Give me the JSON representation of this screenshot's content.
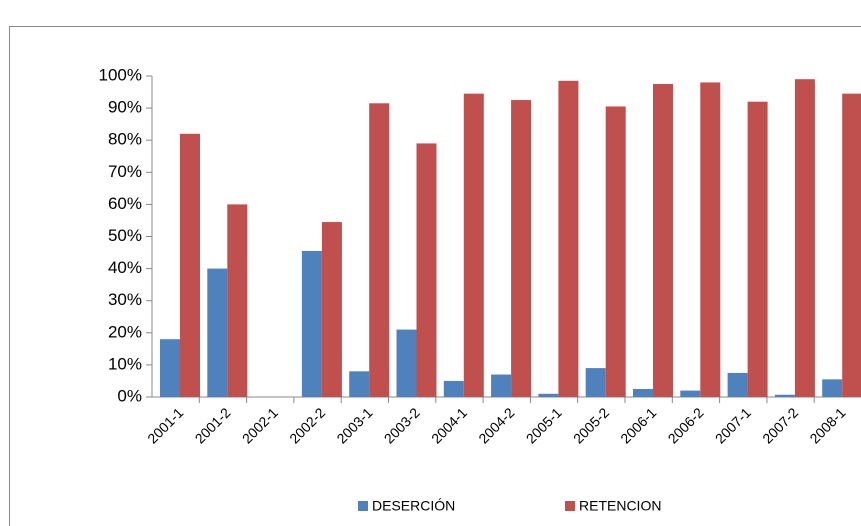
{
  "chart_data": {
    "type": "bar",
    "categories": [
      "2001-1",
      "2001-2",
      "2002-1",
      "2002-2",
      "2003-1",
      "2003-2",
      "2004-1",
      "2004-2",
      "2005-1",
      "2005-2",
      "2006-1",
      "2006-2",
      "2007-1",
      "2007-2",
      "2008-1"
    ],
    "series": [
      {
        "name": "DESERCIÓN",
        "color": "#4f81bd",
        "values": [
          18,
          40,
          null,
          45.5,
          8,
          21,
          5,
          7,
          1,
          9,
          2.5,
          2,
          7.5,
          0.7,
          5.5
        ]
      },
      {
        "name": "RETENCION",
        "color": "#c0504d",
        "values": [
          82,
          60,
          null,
          54.5,
          91.5,
          79,
          94.5,
          92.5,
          98.5,
          90.5,
          97.5,
          98,
          92,
          99,
          94.5
        ]
      }
    ],
    "ylim": [
      0,
      100
    ],
    "yticks": [
      {
        "value": 0,
        "label": "0%"
      },
      {
        "value": 10,
        "label": "10%"
      },
      {
        "value": 20,
        "label": "20%"
      },
      {
        "value": 30,
        "label": "30%"
      },
      {
        "value": 40,
        "label": "40%"
      },
      {
        "value": 50,
        "label": "50%"
      },
      {
        "value": 60,
        "label": "60%"
      },
      {
        "value": 70,
        "label": "70%"
      },
      {
        "value": 80,
        "label": "80%"
      },
      {
        "value": 90,
        "label": "90%"
      },
      {
        "value": 100,
        "label": "100%"
      }
    ],
    "grid": false,
    "legend": "bottom"
  }
}
